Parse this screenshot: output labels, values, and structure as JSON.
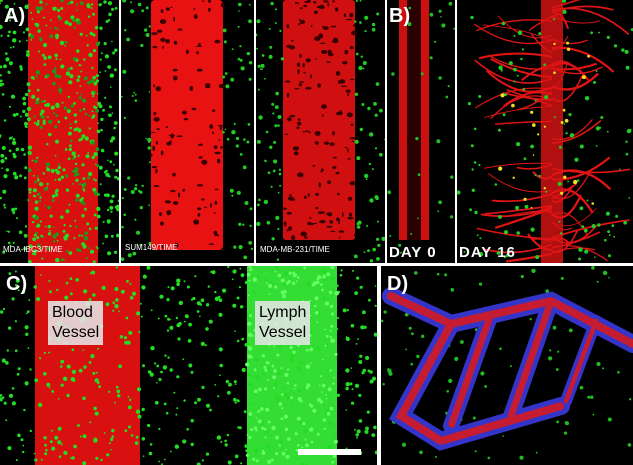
{
  "panels": {
    "a": {
      "letter": "A)",
      "captions": [
        "MDA-IBC3/TIME",
        "SUM149/TIME",
        "MDA-MB-231/TIME"
      ]
    },
    "b": {
      "letter": "B)",
      "day_labels": [
        "DAY  0",
        "DAY  16"
      ]
    },
    "c": {
      "letter": "C)",
      "blood_vessel": [
        "Blood",
        "Vessel"
      ],
      "lymph_vessel": [
        "Lymph",
        "Vessel"
      ]
    },
    "d": {
      "letter": "D)"
    }
  },
  "colors": {
    "vessel_red": "#e01010",
    "cell_green": "#22dd22",
    "lymph_green": "#33ee33",
    "ladder_blue": "#3a3ad8",
    "background": "#000000"
  }
}
